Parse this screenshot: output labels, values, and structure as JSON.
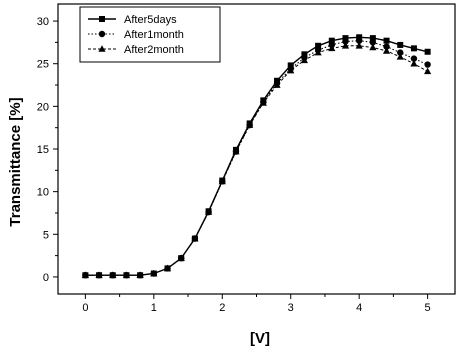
{
  "chart_data": {
    "type": "line",
    "title": "",
    "xlabel": "[V]",
    "ylabel": "Transmittance [%]",
    "xlim": [
      -0.4,
      5.4
    ],
    "ylim": [
      -2,
      32
    ],
    "xticks": [
      0,
      1,
      2,
      3,
      4,
      5
    ],
    "yticks": [
      0,
      5,
      10,
      15,
      20,
      25,
      30
    ],
    "grid": false,
    "legend_position": "top-left",
    "x": [
      0,
      0.2,
      0.4,
      0.6,
      0.8,
      1.0,
      1.2,
      1.4,
      1.6,
      1.8,
      2.0,
      2.2,
      2.4,
      2.6,
      2.8,
      3.0,
      3.2,
      3.4,
      3.6,
      3.8,
      4.0,
      4.2,
      4.4,
      4.6,
      4.8,
      5.0
    ],
    "series": [
      {
        "name": "After5days",
        "marker": "square",
        "values": [
          0.2,
          0.2,
          0.2,
          0.2,
          0.2,
          0.4,
          1.0,
          2.2,
          4.5,
          7.7,
          11.3,
          14.9,
          18.0,
          20.7,
          23.0,
          24.8,
          26.1,
          27.1,
          27.7,
          28.0,
          28.1,
          28.0,
          27.7,
          27.2,
          26.8,
          26.4
        ]
      },
      {
        "name": "After1month",
        "marker": "circle",
        "values": [
          0.2,
          0.2,
          0.2,
          0.2,
          0.2,
          0.4,
          1.0,
          2.2,
          4.5,
          7.6,
          11.2,
          14.7,
          17.8,
          20.5,
          22.7,
          24.4,
          25.7,
          26.6,
          27.2,
          27.6,
          27.7,
          27.5,
          27.0,
          26.3,
          25.6,
          24.9
        ]
      },
      {
        "name": "After2month",
        "marker": "triangle",
        "values": [
          0.2,
          0.2,
          0.2,
          0.2,
          0.2,
          0.4,
          1.0,
          2.2,
          4.5,
          7.6,
          11.2,
          14.7,
          17.8,
          20.4,
          22.5,
          24.2,
          25.4,
          26.3,
          26.8,
          27.1,
          27.1,
          26.9,
          26.5,
          25.8,
          25.0,
          24.1
        ]
      }
    ]
  }
}
